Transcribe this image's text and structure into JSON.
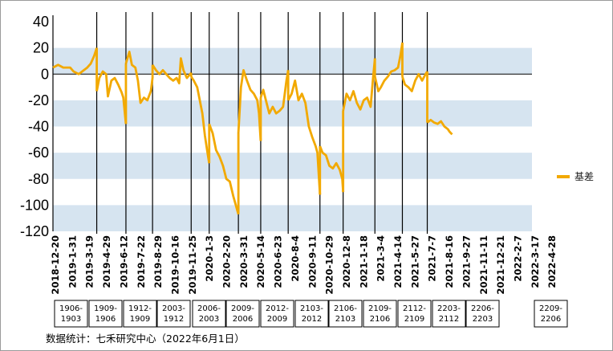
{
  "chart_data": {
    "type": "line",
    "title": "",
    "xlabel": "",
    "ylabel": "",
    "ylim": [
      -120,
      40
    ],
    "yticks": [
      40,
      20,
      0,
      -20,
      -40,
      -60,
      -80,
      -100,
      -120
    ],
    "grid": "alternating horizontal bands",
    "legend_position": "right",
    "xticks": [
      "2018-12-20",
      "2019-1-31",
      "2019-3-19",
      "2019-4-29",
      "2019-6-12",
      "2019-7-22",
      "2019-8-29",
      "2019-10-16",
      "2019-11-25",
      "2020-1-3",
      "2020-2-20",
      "2020-3-31",
      "2020-5-14",
      "2020-6-23",
      "2020-8-4",
      "2020-9-11",
      "2020-10-29",
      "2020-12-8",
      "2021-1-18",
      "2021-3-4",
      "2021-4-14",
      "2021-5-27",
      "2021-7-7",
      "2021-8-16",
      "2021-9-27",
      "2021-11-11",
      "2021-12-21",
      "2022-2-7",
      "2022-3-17",
      "2022-4-28"
    ],
    "contracts": [
      "1906-\n1903",
      "1909-\n1906",
      "1912-\n1909",
      "2003-\n1912",
      "2006-\n2003",
      "2009-\n2006",
      "2012-\n2009",
      "2103-\n2012",
      "2106-\n2103",
      "2109-\n2106",
      "2112-\n2109",
      "2203-\n2112",
      "2206-\n2203",
      "2209-\n2206"
    ],
    "series": [
      {
        "name": "基差",
        "color": "#F2A900",
        "segments": [
          [
            [
              0,
              5
            ],
            [
              0.3,
              7
            ],
            [
              0.6,
              5
            ],
            [
              1,
              5
            ],
            [
              1.2,
              2
            ],
            [
              1.5,
              0
            ],
            [
              1.8,
              3
            ],
            [
              2,
              5
            ],
            [
              2.2,
              8
            ],
            [
              2.4,
              14
            ],
            [
              2.55,
              20
            ]
          ],
          [
            [
              2.55,
              -13
            ],
            [
              2.7,
              -3
            ],
            [
              2.9,
              2
            ],
            [
              3.1,
              0
            ],
            [
              3.2,
              -17
            ],
            [
              3.4,
              -5
            ],
            [
              3.6,
              -3
            ],
            [
              3.8,
              -8
            ],
            [
              4,
              -14
            ],
            [
              4.1,
              -18
            ],
            [
              4.25,
              -38
            ]
          ],
          [
            [
              4.25,
              8
            ],
            [
              4.45,
              17
            ],
            [
              4.6,
              7
            ],
            [
              4.8,
              5
            ],
            [
              4.95,
              -5
            ],
            [
              5.1,
              -22
            ],
            [
              5.3,
              -18
            ],
            [
              5.5,
              -20
            ],
            [
              5.7,
              -13
            ],
            [
              5.8,
              -3
            ]
          ],
          [
            [
              5.8,
              7
            ],
            [
              6,
              3
            ],
            [
              6.2,
              0
            ],
            [
              6.4,
              3
            ],
            [
              6.6,
              0
            ],
            [
              6.8,
              -3
            ],
            [
              7,
              -5
            ],
            [
              7.2,
              -3
            ],
            [
              7.35,
              -7
            ],
            [
              7.45,
              12
            ],
            [
              7.6,
              3
            ],
            [
              7.8,
              -3
            ],
            [
              8.05,
              1
            ]
          ],
          [
            [
              8.05,
              -2
            ],
            [
              8.2,
              -5
            ],
            [
              8.4,
              -10
            ],
            [
              8.55,
              -20
            ],
            [
              8.7,
              -30
            ],
            [
              8.85,
              -47
            ],
            [
              9,
              -60
            ],
            [
              9.1,
              -68
            ]
          ],
          [
            [
              9.1,
              -38
            ],
            [
              9.3,
              -45
            ],
            [
              9.5,
              -58
            ],
            [
              9.7,
              -63
            ],
            [
              9.9,
              -70
            ],
            [
              10.1,
              -80
            ],
            [
              10.3,
              -82
            ],
            [
              10.5,
              -93
            ],
            [
              10.65,
              -100
            ],
            [
              10.8,
              -107
            ]
          ],
          [
            [
              10.8,
              -45
            ],
            [
              10.95,
              -10
            ],
            [
              11.1,
              3
            ],
            [
              11.3,
              -5
            ],
            [
              11.5,
              -12
            ],
            [
              11.7,
              -15
            ],
            [
              11.9,
              -20
            ],
            [
              12,
              -30
            ],
            [
              12.1,
              -51
            ]
          ],
          [
            [
              12.1,
              -18
            ],
            [
              12.25,
              -12
            ],
            [
              12.4,
              -20
            ],
            [
              12.6,
              -30
            ],
            [
              12.8,
              -25
            ],
            [
              13,
              -30
            ],
            [
              13.2,
              -28
            ],
            [
              13.4,
              -25
            ],
            [
              13.6,
              -5
            ],
            [
              13.7,
              3
            ]
          ],
          [
            [
              13.7,
              -20
            ],
            [
              13.9,
              -15
            ],
            [
              14.1,
              -5
            ],
            [
              14.3,
              -20
            ],
            [
              14.5,
              -15
            ],
            [
              14.7,
              -22
            ],
            [
              14.9,
              -40
            ],
            [
              15.1,
              -48
            ],
            [
              15.3,
              -55
            ],
            [
              15.4,
              -60
            ],
            [
              15.55,
              -92
            ]
          ],
          [
            [
              15.55,
              -55
            ],
            [
              15.7,
              -60
            ],
            [
              15.9,
              -62
            ],
            [
              16.1,
              -70
            ],
            [
              16.3,
              -72
            ],
            [
              16.5,
              -68
            ],
            [
              16.7,
              -73
            ],
            [
              16.85,
              -80
            ],
            [
              16.9,
              -90
            ]
          ],
          [
            [
              16.9,
              -28
            ],
            [
              17.1,
              -15
            ],
            [
              17.3,
              -20
            ],
            [
              17.5,
              -13
            ],
            [
              17.7,
              -22
            ],
            [
              17.9,
              -27
            ],
            [
              18.1,
              -20
            ],
            [
              18.3,
              -18
            ],
            [
              18.5,
              -25
            ],
            [
              18.65,
              -2
            ],
            [
              18.75,
              12
            ]
          ],
          [
            [
              18.75,
              -2
            ],
            [
              18.95,
              -13
            ],
            [
              19.1,
              -10
            ],
            [
              19.3,
              -5
            ],
            [
              19.5,
              -2
            ],
            [
              19.7,
              2
            ],
            [
              19.9,
              3
            ],
            [
              20.1,
              5
            ],
            [
              20.25,
              15
            ],
            [
              20.35,
              24
            ]
          ],
          [
            [
              20.35,
              -2
            ],
            [
              20.5,
              -8
            ],
            [
              20.7,
              -10
            ],
            [
              20.9,
              -13
            ],
            [
              21.1,
              -5
            ],
            [
              21.3,
              0
            ],
            [
              21.5,
              -5
            ],
            [
              21.7,
              0
            ],
            [
              21.8,
              2
            ]
          ],
          [
            [
              21.8,
              -37
            ],
            [
              22,
              -35
            ],
            [
              22.2,
              -37
            ],
            [
              22.4,
              -38
            ],
            [
              22.6,
              -36
            ],
            [
              22.8,
              -40
            ],
            [
              23.0,
              -42
            ],
            [
              23.1,
              -44
            ],
            [
              23.25,
              -46
            ]
          ]
        ]
      }
    ],
    "source": "数据统计：七禾研究中心（2022年6月1日）"
  }
}
